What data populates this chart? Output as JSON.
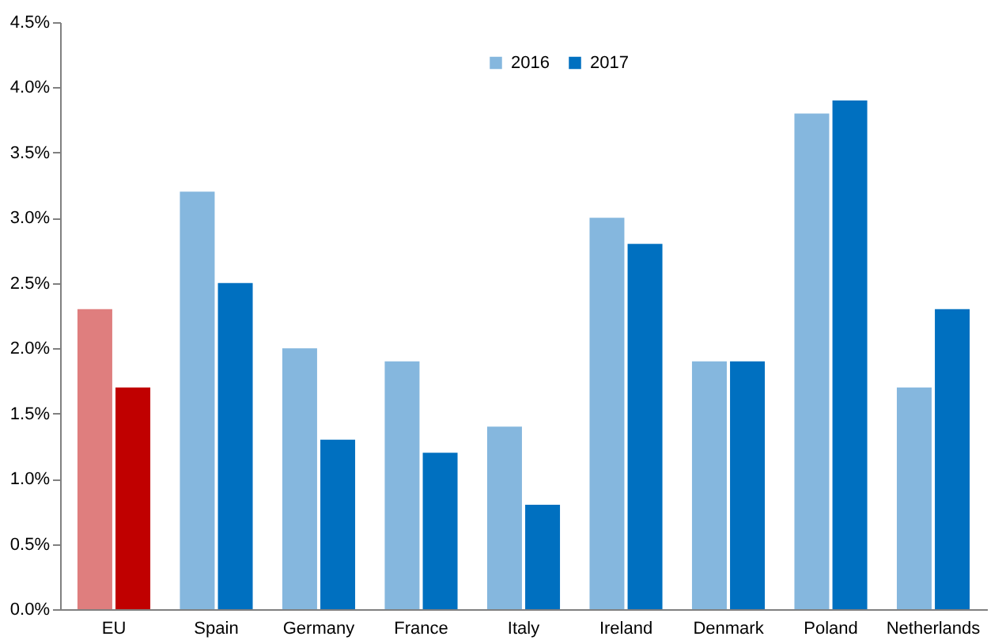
{
  "chart_data": {
    "type": "bar",
    "categories": [
      "EU",
      "Spain",
      "Germany",
      "France",
      "Italy",
      "Ireland",
      "Denmark",
      "Poland",
      "Netherlands"
    ],
    "series": [
      {
        "name": "2016",
        "color": "#85b7de",
        "colors": [
          "#df7e7e",
          "#85b7de",
          "#85b7de",
          "#85b7de",
          "#85b7de",
          "#85b7de",
          "#85b7de",
          "#85b7de",
          "#85b7de"
        ],
        "values": [
          2.3,
          3.2,
          2.0,
          1.9,
          1.4,
          3.0,
          1.9,
          3.8,
          1.7
        ]
      },
      {
        "name": "2017",
        "color": "#0070c0",
        "colors": [
          "#c00000",
          "#0070c0",
          "#0070c0",
          "#0070c0",
          "#0070c0",
          "#0070c0",
          "#0070c0",
          "#0070c0",
          "#0070c0"
        ],
        "values": [
          1.7,
          2.5,
          1.3,
          1.2,
          0.8,
          2.8,
          1.9,
          3.9,
          2.3
        ]
      }
    ],
    "ylim": [
      0,
      4.5
    ],
    "yticks": [
      {
        "value": 0,
        "label": "0.0%"
      },
      {
        "value": 0.5,
        "label": "0.5%"
      },
      {
        "value": 1,
        "label": "1.0%"
      },
      {
        "value": 1.5,
        "label": "1.5%"
      },
      {
        "value": 2,
        "label": "2.0%"
      },
      {
        "value": 2.5,
        "label": "2.5%"
      },
      {
        "value": 3,
        "label": "3.0%"
      },
      {
        "value": 3.5,
        "label": "3.5%"
      },
      {
        "value": 4,
        "label": "4.0%"
      },
      {
        "value": 4.5,
        "label": "4.5%"
      }
    ],
    "grid": false,
    "legend": "top"
  }
}
